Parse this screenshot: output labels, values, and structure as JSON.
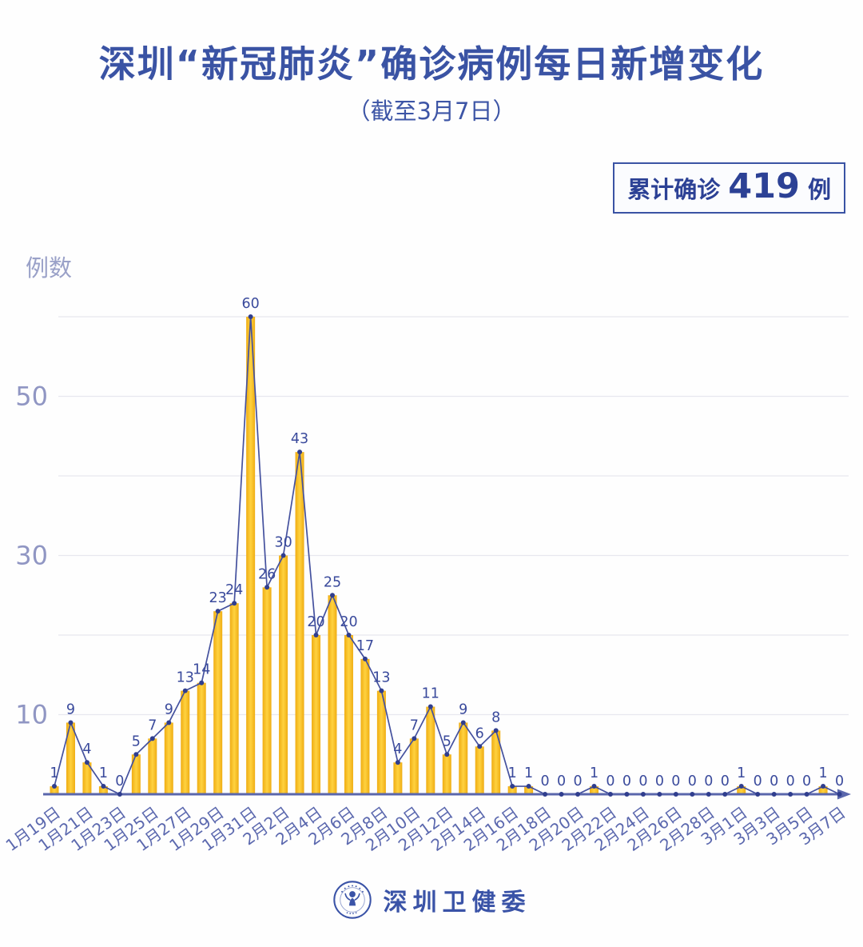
{
  "title": "深圳“新冠肺炎”确诊病例每日新增变化",
  "subtitle": "（截至3月7日）",
  "summary_badge": {
    "prefix": "累计确诊",
    "value": "419",
    "suffix": "例"
  },
  "footer": {
    "org_name": "深圳卫健委",
    "logo_icon": "shenzhen-health-commission-emblem"
  },
  "colors": {
    "title_blue": "#3a53a4",
    "badge_blue": "#2c4195",
    "bar_gold": "#f9c21b",
    "bar_gold_edge": "#efad13",
    "bar_gold_center": "#ffd23f",
    "line_blue": "#44519e",
    "dot_navy": "#303e8e",
    "data_label_blue": "#3a4a9c",
    "axis_blue": "#5a67ac",
    "x_tick_blue": "#5b68ae",
    "y_tick_gray": "#9096c3",
    "gridline_gray": "#e7e7ef"
  },
  "chart_data": {
    "type": "bar",
    "title": "深圳“新冠肺炎”确诊病例每日新增变化",
    "subtitle": "（截至3月7日）",
    "ylabel": "例数",
    "xlabel": "",
    "ylim": [
      0,
      60
    ],
    "y_ticks_labeled": [
      10,
      30,
      50
    ],
    "gridlines": [
      10,
      20,
      30,
      40,
      50,
      60
    ],
    "x_label_interval": 2,
    "grid": "on",
    "categories": [
      "1月19日",
      "1月20日",
      "1月21日",
      "1月22日",
      "1月23日",
      "1月24日",
      "1月25日",
      "1月26日",
      "1月27日",
      "1月28日",
      "1月29日",
      "1月30日",
      "1月31日",
      "2月1日",
      "2月2日",
      "2月3日",
      "2月4日",
      "2月5日",
      "2月6日",
      "2月7日",
      "2月8日",
      "2月9日",
      "2月10日",
      "2月11日",
      "2月12日",
      "2月13日",
      "2月14日",
      "2月15日",
      "2月16日",
      "2月17日",
      "2月18日",
      "2月19日",
      "2月20日",
      "2月21日",
      "2月22日",
      "2月23日",
      "2月24日",
      "2月25日",
      "2月26日",
      "2月27日",
      "2月28日",
      "2月29日",
      "3月1日",
      "3月2日",
      "3月3日",
      "3月4日",
      "3月5日",
      "3月6日",
      "3月7日"
    ],
    "values": [
      1,
      9,
      4,
      1,
      0,
      5,
      7,
      9,
      13,
      14,
      23,
      24,
      60,
      26,
      30,
      43,
      20,
      25,
      20,
      17,
      13,
      4,
      7,
      11,
      5,
      9,
      6,
      8,
      1,
      1,
      0,
      0,
      0,
      1,
      0,
      0,
      0,
      0,
      0,
      0,
      0,
      0,
      1,
      0,
      0,
      0,
      0,
      1,
      0
    ],
    "total": 419
  }
}
